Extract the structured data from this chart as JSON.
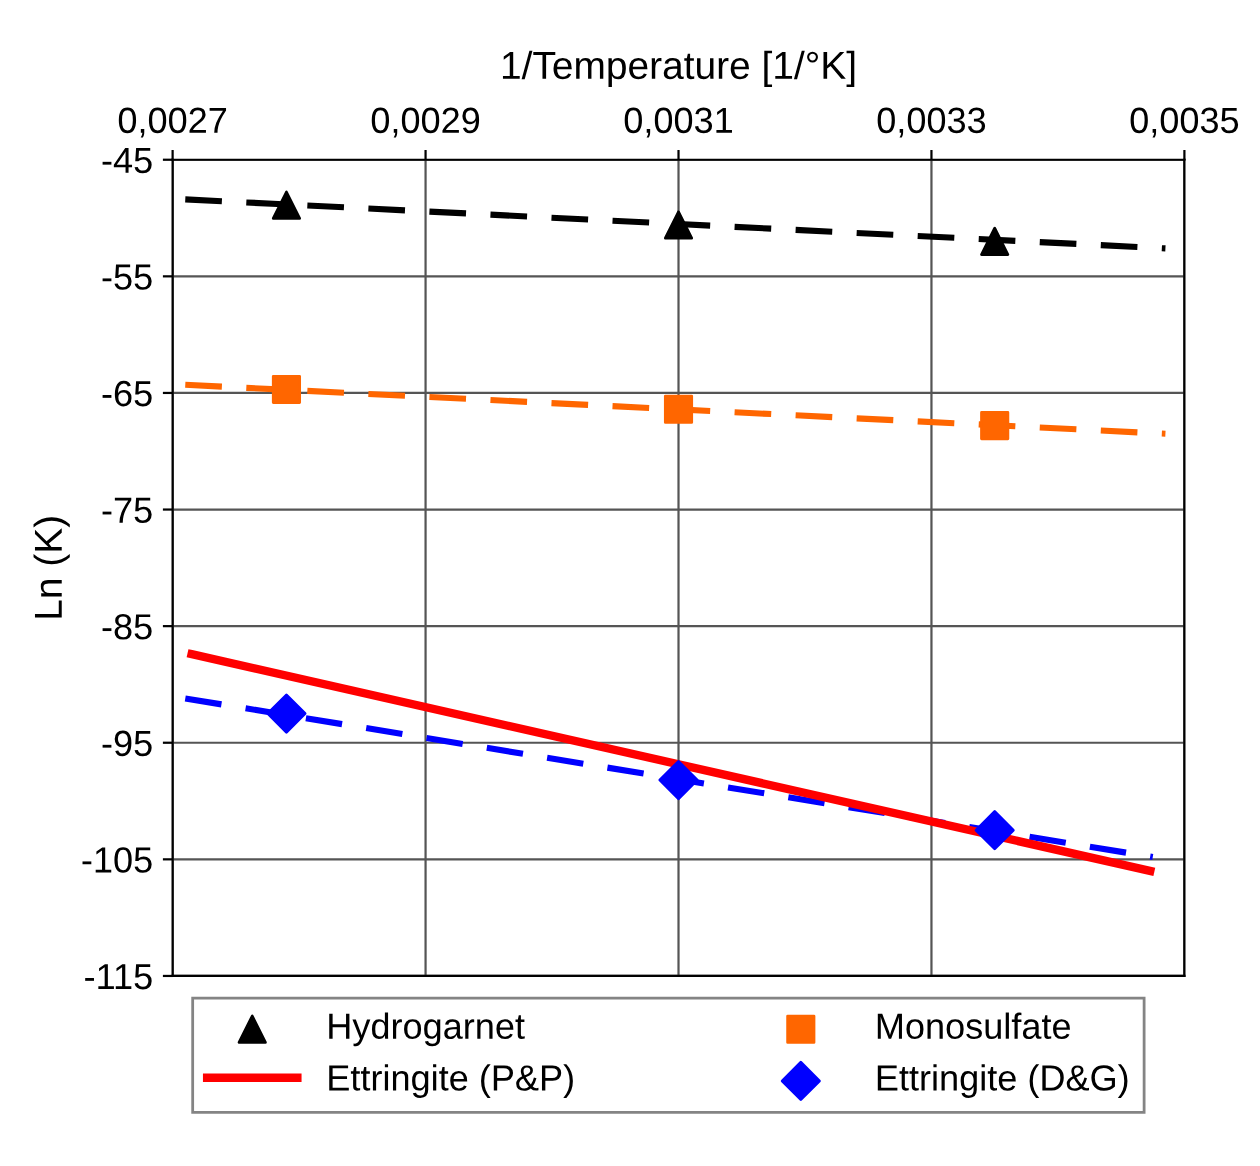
{
  "chart_data": {
    "type": "scatter",
    "xlabel": "1/Temperature [1/°K]",
    "ylabel": "Ln (K)",
    "xlim": [
      0.0027,
      0.0035
    ],
    "ylim": [
      -115,
      -45
    ],
    "xticks": [
      {
        "value": 0.0027,
        "label": "0,0027"
      },
      {
        "value": 0.0029,
        "label": "0,0029"
      },
      {
        "value": 0.0031,
        "label": "0,0031"
      },
      {
        "value": 0.0033,
        "label": "0,0033"
      },
      {
        "value": 0.0035,
        "label": "0,0035"
      }
    ],
    "yticks": [
      -45,
      -55,
      -65,
      -75,
      -85,
      -95,
      -105,
      -115
    ],
    "grid": true,
    "legend": "bottom",
    "series": [
      {
        "type": "line",
        "color": "#000000",
        "line_style": "dashed",
        "marker": "none",
        "x": [
          0.00271,
          0.003485
        ],
        "values": [
          -48.4,
          -52.6
        ]
      },
      {
        "type": "line",
        "color": "#ff6600",
        "line_style": "dashed",
        "marker": "none",
        "x": [
          0.00271,
          0.003485
        ],
        "values": [
          -64.3,
          -68.5
        ]
      },
      {
        "type": "line",
        "color": "#0000ff",
        "line_style": "dashed",
        "marker": "none",
        "x": [
          0.00271,
          0.003475
        ],
        "values": [
          -91.2,
          -104.8
        ]
      },
      {
        "name": "Hydrogarnet",
        "color": "#000000",
        "marker": "triangle",
        "x": [
          0.00279,
          0.0031,
          0.00335
        ],
        "values": [
          -48.9,
          -50.6,
          -52.0
        ]
      },
      {
        "name": "Monosulfate",
        "color": "#ff6600",
        "marker": "square",
        "x": [
          0.00279,
          0.0031,
          0.00335
        ],
        "values": [
          -64.7,
          -66.4,
          -67.8
        ]
      },
      {
        "type": "line",
        "name": "Ettringite (P&P)",
        "color": "#ff0000",
        "line_style": "solid",
        "marker": "none",
        "x": [
          0.002715,
          0.003473
        ],
        "values": [
          -87.4,
          -106.0
        ]
      },
      {
        "name": "Ettringite (D&G)",
        "color": "#0000ff",
        "marker": "diamond",
        "x": [
          0.00279,
          0.0031,
          0.00335
        ],
        "values": [
          -92.5,
          -98.2,
          -102.5
        ]
      }
    ]
  }
}
